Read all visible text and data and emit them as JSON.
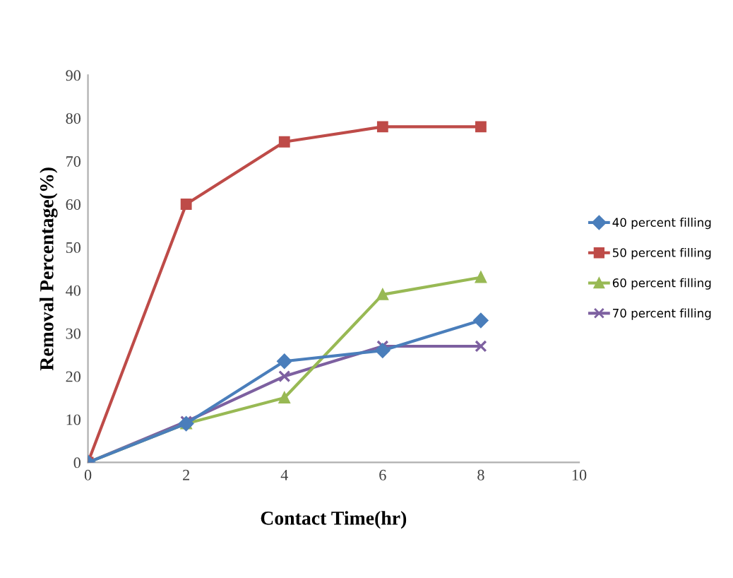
{
  "chart_data": {
    "type": "line",
    "xlabel": "Contact Time(hr)",
    "ylabel": "Removal Percentage(%)",
    "x": [
      0,
      2,
      4,
      6,
      8
    ],
    "series": [
      {
        "name": "40 percent filling",
        "color": "#4a7ebb",
        "values": [
          0,
          9,
          23.5,
          26,
          33
        ],
        "marker": "diamond"
      },
      {
        "name": "50 percent filling",
        "color": "#be4b48",
        "values": [
          0,
          60,
          74.5,
          78,
          78
        ],
        "marker": "square"
      },
      {
        "name": "60 percent filling",
        "color": "#98b954",
        "values": [
          0,
          9,
          15,
          39,
          43
        ],
        "marker": "triangle"
      },
      {
        "name": "70 percent filling",
        "color": "#7d60a0",
        "values": [
          0,
          9.5,
          20,
          27,
          27
        ],
        "marker": "cross"
      }
    ],
    "xlim": [
      0,
      10
    ],
    "xticks": [
      0,
      2,
      4,
      6,
      8,
      10
    ],
    "ylim": [
      0,
      90
    ],
    "yticks": [
      0,
      10,
      20,
      30,
      40,
      50,
      60,
      70,
      80,
      90
    ],
    "grid": false,
    "legend": "right",
    "line_style": "solid"
  }
}
